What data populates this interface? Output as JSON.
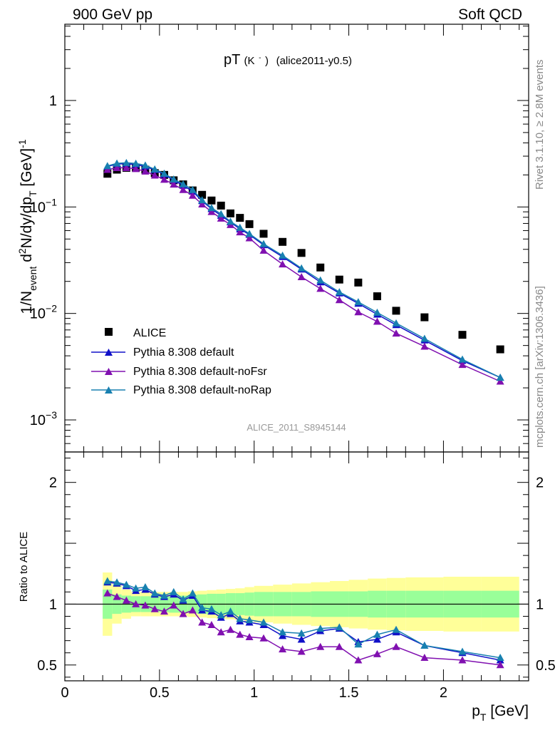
{
  "header": {
    "left": "900 GeV pp",
    "right": "Soft QCD"
  },
  "side_text": {
    "rivet": "Rivet 3.1.10, ≥ 2.8M events",
    "mcplots": "mcplots.cern.ch [arXiv:1306.3436]"
  },
  "plot_title": {
    "main": "pT",
    "particle": "(K",
    "particle_sup": "-",
    "particle_close": ")",
    "tag": "(alice2011-y0.5)"
  },
  "analysis_id": "ALICE_2011_S8945144",
  "colors": {
    "data": "#000000",
    "default": "#1010c8",
    "noFsr": "#8010b0",
    "noRap": "#1880b0",
    "band_inner": "#99ff99",
    "band_outer": "#ffff99"
  },
  "chart_data": [
    {
      "type": "scatter",
      "panel": "main",
      "ylabel": {
        "prefix": "1/N",
        "sub1": "event",
        "mid": " d",
        "sup": "2",
        "rest": "N/dy/dp",
        "sub2": "T",
        "unit": " [GeV]",
        "unit_sup": "-1"
      },
      "xlim": [
        0,
        2.45
      ],
      "ylim": [
        0.0005,
        5.2
      ],
      "log_y": true,
      "y_ticks": [
        {
          "value": 1,
          "label": "1",
          "sup": ""
        },
        {
          "value": 0.1,
          "label": "10",
          "sup": "−1"
        },
        {
          "value": 0.01,
          "label": "10",
          "sup": "−2"
        },
        {
          "value": 0.001,
          "label": "10",
          "sup": "−3"
        }
      ],
      "legend_placement": "lower-left",
      "x": [
        0.225,
        0.275,
        0.325,
        0.375,
        0.425,
        0.475,
        0.525,
        0.575,
        0.625,
        0.675,
        0.725,
        0.775,
        0.825,
        0.875,
        0.925,
        0.975,
        1.05,
        1.15,
        1.25,
        1.35,
        1.45,
        1.55,
        1.65,
        1.75,
        1.9,
        2.1,
        2.3
      ],
      "series": [
        {
          "name": "ALICE",
          "marker": "square",
          "values": [
            0.205,
            0.224,
            0.233,
            0.234,
            0.224,
            0.208,
            0.2,
            0.178,
            0.163,
            0.143,
            0.13,
            0.115,
            0.103,
            0.087,
            0.079,
            0.069,
            0.056,
            0.047,
            0.037,
            0.027,
            0.0208,
            0.0195,
            0.0145,
            0.0106,
            0.0092,
            0.0063,
            0.0046
          ]
        },
        {
          "name": "Pythia 8.308 default",
          "marker": "triangle",
          "values": [
            0.24,
            0.253,
            0.255,
            0.25,
            0.24,
            0.223,
            0.202,
            0.178,
            0.159,
            0.14,
            0.114,
            0.096,
            0.083,
            0.072,
            0.062,
            0.055,
            0.044,
            0.034,
            0.026,
            0.0197,
            0.0155,
            0.0124,
            0.0098,
            0.0078,
            0.0056,
            0.0036,
            0.0025
          ]
        },
        {
          "name": "Pythia 8.308 default-noFsr",
          "marker": "triangle",
          "values": [
            0.224,
            0.233,
            0.233,
            0.228,
            0.216,
            0.198,
            0.181,
            0.163,
            0.145,
            0.128,
            0.106,
            0.09,
            0.078,
            0.068,
            0.058,
            0.051,
            0.039,
            0.029,
            0.022,
            0.0171,
            0.0134,
            0.0103,
            0.0084,
            0.0065,
            0.0049,
            0.0033,
            0.0023
          ]
        },
        {
          "name": "Pythia 8.308 default-noRap",
          "marker": "triangle",
          "values": [
            0.243,
            0.257,
            0.26,
            0.256,
            0.246,
            0.226,
            0.206,
            0.182,
            0.164,
            0.145,
            0.116,
            0.098,
            0.086,
            0.073,
            0.064,
            0.056,
            0.045,
            0.035,
            0.0266,
            0.0205,
            0.0159,
            0.0128,
            0.0102,
            0.0081,
            0.0058,
            0.0037,
            0.0025
          ]
        }
      ]
    },
    {
      "type": "line",
      "panel": "ratio",
      "ylabel": "Ratio to ALICE",
      "xlabel_main": "p",
      "xlabel_sub": "T",
      "xlabel_unit": " [GeV]",
      "xlim": [
        0,
        2.45
      ],
      "ylim": [
        0.37,
        2.25
      ],
      "x_ticks": [
        {
          "value": 0,
          "label": "0"
        },
        {
          "value": 0.5,
          "label": "0.5"
        },
        {
          "value": 1,
          "label": "1"
        },
        {
          "value": 1.5,
          "label": "1.5"
        },
        {
          "value": 2,
          "label": "2"
        }
      ],
      "y_ticks": [
        {
          "value": 0.5,
          "label": "0.5"
        },
        {
          "value": 1,
          "label": "1"
        },
        {
          "value": 2,
          "label": "2"
        }
      ],
      "x": [
        0.225,
        0.275,
        0.325,
        0.375,
        0.425,
        0.475,
        0.525,
        0.575,
        0.625,
        0.675,
        0.725,
        0.775,
        0.825,
        0.875,
        0.925,
        0.975,
        1.05,
        1.15,
        1.25,
        1.35,
        1.45,
        1.55,
        1.65,
        1.75,
        1.9,
        2.1,
        2.3
      ],
      "bands": {
        "edges": [
          0.2,
          0.25,
          0.3,
          0.35,
          0.4,
          0.45,
          0.5,
          0.55,
          0.6,
          0.65,
          0.7,
          0.75,
          0.8,
          0.85,
          0.9,
          0.95,
          1.0,
          1.1,
          1.2,
          1.3,
          1.4,
          1.5,
          1.6,
          1.7,
          1.8,
          2.0,
          2.2,
          2.4
        ],
        "inner": [
          0.12,
          0.08,
          0.07,
          0.065,
          0.065,
          0.065,
          0.065,
          0.07,
          0.07,
          0.075,
          0.08,
          0.085,
          0.085,
          0.09,
          0.09,
          0.095,
          0.1,
          0.1,
          0.1,
          0.105,
          0.105,
          0.105,
          0.11,
          0.11,
          0.11,
          0.11,
          0.11
        ],
        "outer": [
          0.26,
          0.16,
          0.12,
          0.1,
          0.1,
          0.1,
          0.1,
          0.1,
          0.1,
          0.105,
          0.11,
          0.115,
          0.12,
          0.125,
          0.13,
          0.14,
          0.15,
          0.16,
          0.17,
          0.18,
          0.19,
          0.2,
          0.21,
          0.215,
          0.22,
          0.225,
          0.225
        ]
      },
      "series": [
        {
          "name": "Pythia 8.308 default",
          "values": [
            1.18,
            1.17,
            1.15,
            1.11,
            1.12,
            1.08,
            1.06,
            1.08,
            1.03,
            1.07,
            0.95,
            0.94,
            0.89,
            0.92,
            0.86,
            0.85,
            0.83,
            0.74,
            0.71,
            0.78,
            0.8,
            0.69,
            0.71,
            0.77,
            0.66,
            0.6,
            0.54
          ]
        },
        {
          "name": "Pythia 8.308 default-noFsr",
          "values": [
            1.09,
            1.06,
            1.03,
            1.0,
            0.99,
            0.96,
            0.94,
            0.99,
            0.92,
            0.95,
            0.85,
            0.83,
            0.77,
            0.79,
            0.75,
            0.73,
            0.72,
            0.63,
            0.61,
            0.65,
            0.65,
            0.54,
            0.59,
            0.65,
            0.56,
            0.54,
            0.5
          ]
        },
        {
          "name": "Pythia 8.308 default-noRap",
          "values": [
            1.19,
            1.18,
            1.16,
            1.13,
            1.14,
            1.09,
            1.07,
            1.1,
            1.04,
            1.09,
            0.97,
            0.96,
            0.91,
            0.94,
            0.88,
            0.87,
            0.85,
            0.77,
            0.76,
            0.8,
            0.81,
            0.67,
            0.75,
            0.79,
            0.66,
            0.61,
            0.56
          ]
        }
      ]
    }
  ]
}
